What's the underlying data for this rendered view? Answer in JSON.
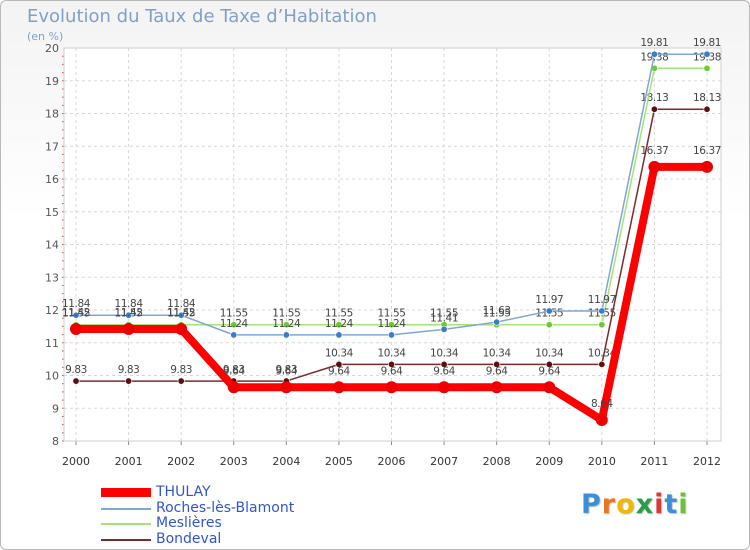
{
  "chart_data": {
    "type": "line",
    "title": "Evolution du Taux de Taxe d’Habitation",
    "ylabel": "(en %)",
    "xlabel": "",
    "ylim": [
      8,
      20
    ],
    "yticks": [
      8,
      9,
      10,
      11,
      12,
      13,
      14,
      15,
      16,
      17,
      18,
      19,
      20
    ],
    "categories": [
      "2000",
      "2001",
      "2002",
      "2003",
      "2004",
      "2005",
      "2006",
      "2007",
      "2008",
      "2009",
      "2010",
      "2011",
      "2012"
    ],
    "grid": true,
    "legend_position": "bottom-left",
    "series": [
      {
        "name": "Bondeval",
        "color": "#7a2a2a",
        "marker": "#5a1010",
        "values": [
          9.83,
          9.83,
          9.83,
          9.83,
          9.83,
          10.34,
          10.34,
          10.34,
          10.34,
          10.34,
          10.34,
          18.13,
          18.13
        ],
        "labels": [
          "9.83",
          "9.83",
          "9.83",
          "9.83",
          "9.83",
          "10.34",
          "10.34",
          "10.34",
          "10.34",
          "10.34",
          "10.34",
          "18.13",
          "18.13"
        ]
      },
      {
        "name": "Meslières",
        "color": "#a6e27a",
        "marker": "#6ccb2e",
        "values": [
          11.55,
          11.55,
          11.55,
          11.55,
          11.55,
          11.55,
          11.55,
          11.55,
          11.55,
          11.55,
          11.55,
          19.38,
          19.38
        ],
        "labels": [
          "11.55",
          "11.55",
          "11.55",
          "11.55",
          "11.55",
          "11.55",
          "11.55",
          "11.55",
          "11.55",
          "11.55",
          "11.55",
          "19.38",
          "19.38"
        ]
      },
      {
        "name": "Roches-lès-Blamont",
        "color": "#7fa8d0",
        "marker": "#3a7dc8",
        "values": [
          11.84,
          11.84,
          11.84,
          11.24,
          11.24,
          11.24,
          11.24,
          11.41,
          11.63,
          11.97,
          11.97,
          19.81,
          19.81
        ],
        "labels": [
          "11.84",
          "11.84",
          "11.84",
          "11.24",
          "11.24",
          "11.24",
          "11.24",
          "11.41",
          "11.63",
          "11.97",
          "11.97",
          "19.81",
          "19.81"
        ]
      },
      {
        "name": "THULAY",
        "color": "#ff0000",
        "marker": "#ee0000",
        "values": [
          11.42,
          11.42,
          11.42,
          9.64,
          9.64,
          9.64,
          9.64,
          9.64,
          9.64,
          9.64,
          8.64,
          16.37,
          16.37
        ],
        "labels": [
          "11.42",
          "11.42",
          "11.42",
          "9.64",
          "9.64",
          "9.64",
          "9.64",
          "9.64",
          "9.64",
          "9.64",
          "8.64",
          "16.37",
          "16.37"
        ]
      }
    ]
  },
  "legend": [
    {
      "name": "THULAY",
      "color": "#ff0000",
      "text_color": "#3355cc"
    },
    {
      "name": "Roches-lès-Blamont",
      "color": "#7fa8d0",
      "text_color": "#3355cc"
    },
    {
      "name": "Meslières",
      "color": "#a6e27a",
      "text_color": "#3355cc"
    },
    {
      "name": "Bondeval",
      "color": "#7a2a2a",
      "text_color": "#3355cc"
    }
  ],
  "logo": {
    "letters": [
      "P",
      "r",
      "o",
      "x",
      "i",
      "t",
      "i"
    ],
    "colors": [
      "#3a8fd8",
      "#e87722",
      "#f2b705",
      "#2a9d4a",
      "#d83a3a",
      "#3a8fd8",
      "#6fbf3a"
    ]
  }
}
